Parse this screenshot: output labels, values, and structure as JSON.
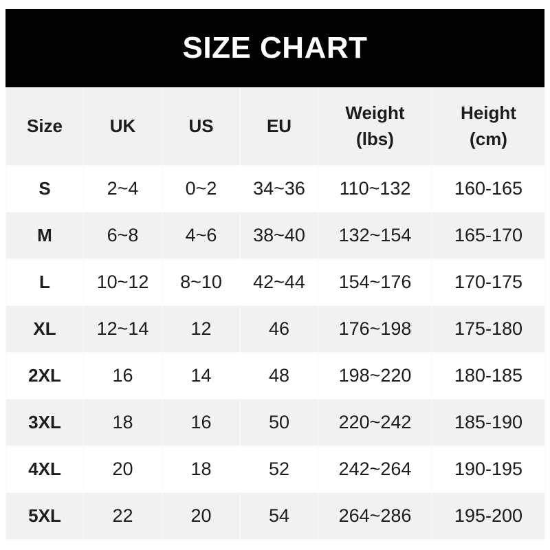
{
  "title": "SIZE CHART",
  "headers": [
    {
      "line1": "Size",
      "line2": ""
    },
    {
      "line1": "UK",
      "line2": ""
    },
    {
      "line1": "US",
      "line2": ""
    },
    {
      "line1": "EU",
      "line2": ""
    },
    {
      "line1": "Weight",
      "line2": "(lbs)"
    },
    {
      "line1": "Height",
      "line2": "(cm)"
    }
  ],
  "rows": [
    [
      "S",
      "2~4",
      "0~2",
      "34~36",
      "110~132",
      "160-165"
    ],
    [
      "M",
      "6~8",
      "4~6",
      "38~40",
      "132~154",
      "165-170"
    ],
    [
      "L",
      "10~12",
      "8~10",
      "42~44",
      "154~176",
      "170-175"
    ],
    [
      "XL",
      "12~14",
      "12",
      "46",
      "176~198",
      "175-180"
    ],
    [
      "2XL",
      "16",
      "14",
      "48",
      "198~220",
      "180-185"
    ],
    [
      "3XL",
      "18",
      "16",
      "50",
      "220~242",
      "185-190"
    ],
    [
      "4XL",
      "20",
      "18",
      "52",
      "242~264",
      "190-195"
    ],
    [
      "5XL",
      "22",
      "20",
      "54",
      "264~286",
      "195-200"
    ]
  ],
  "colors": {
    "header_bg": "#000000",
    "alt_row_bg": "#f1f1f1"
  }
}
